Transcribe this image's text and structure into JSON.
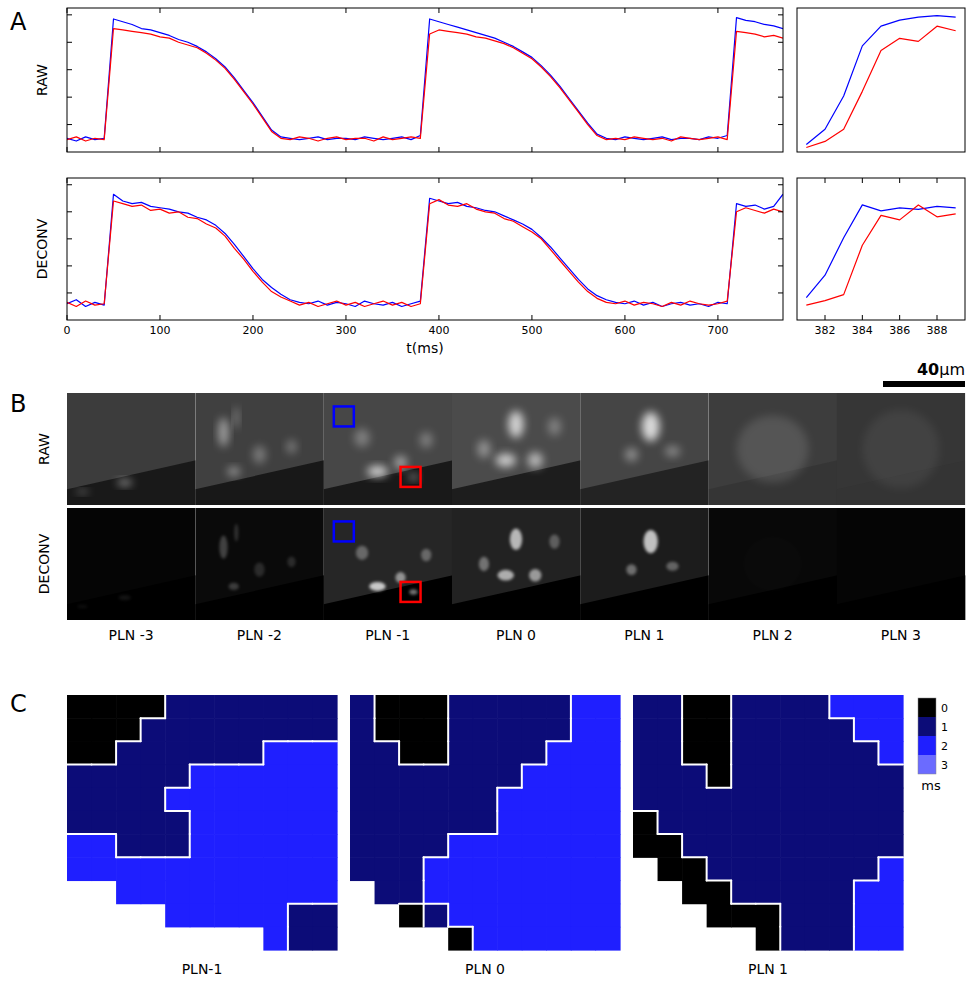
{
  "chart_data": [
    {
      "type": "line",
      "ylabel": "RAW",
      "tick_labels": false,
      "xlim": [
        0,
        770
      ],
      "xticks": [
        0,
        100,
        200,
        300,
        400,
        500,
        600,
        700
      ],
      "ylim": [
        0,
        1.05
      ],
      "yticks": [
        0.2,
        0.4,
        0.6,
        0.8,
        1
      ],
      "x": [
        0,
        10,
        20,
        30,
        40,
        50,
        60,
        70,
        80,
        90,
        100,
        110,
        120,
        130,
        140,
        150,
        160,
        170,
        180,
        190,
        200,
        210,
        220,
        230,
        240,
        250,
        260,
        270,
        280,
        290,
        300,
        310,
        320,
        330,
        340,
        350,
        360,
        370,
        380,
        390,
        400,
        410,
        420,
        430,
        440,
        450,
        460,
        470,
        480,
        490,
        500,
        510,
        520,
        530,
        540,
        550,
        560,
        570,
        580,
        590,
        600,
        610,
        620,
        630,
        640,
        650,
        660,
        670,
        680,
        690,
        700,
        710,
        720,
        730,
        740,
        750,
        760,
        770
      ],
      "series": [
        {
          "color": "#0000ff",
          "values": [
            0.1,
            0.08,
            0.11,
            0.09,
            0.1,
            0.97,
            0.95,
            0.93,
            0.9,
            0.89,
            0.87,
            0.85,
            0.82,
            0.8,
            0.77,
            0.73,
            0.68,
            0.62,
            0.54,
            0.45,
            0.36,
            0.26,
            0.16,
            0.11,
            0.1,
            0.09,
            0.1,
            0.11,
            0.09,
            0.1,
            0.1,
            0.09,
            0.11,
            0.1,
            0.09,
            0.1,
            0.11,
            0.09,
            0.12,
            0.97,
            0.95,
            0.93,
            0.91,
            0.89,
            0.87,
            0.85,
            0.83,
            0.8,
            0.77,
            0.73,
            0.69,
            0.63,
            0.56,
            0.48,
            0.39,
            0.3,
            0.21,
            0.13,
            0.1,
            0.09,
            0.11,
            0.1,
            0.09,
            0.1,
            0.11,
            0.09,
            0.1,
            0.1,
            0.09,
            0.11,
            0.1,
            0.12,
            0.98,
            0.96,
            0.95,
            0.93,
            0.92,
            0.9
          ]
        },
        {
          "color": "#ff0000",
          "values": [
            0.09,
            0.11,
            0.08,
            0.1,
            0.09,
            0.9,
            0.89,
            0.88,
            0.87,
            0.86,
            0.84,
            0.83,
            0.8,
            0.78,
            0.76,
            0.72,
            0.67,
            0.61,
            0.53,
            0.44,
            0.35,
            0.25,
            0.15,
            0.1,
            0.09,
            0.11,
            0.1,
            0.08,
            0.1,
            0.11,
            0.09,
            0.1,
            0.1,
            0.08,
            0.11,
            0.09,
            0.1,
            0.11,
            0.1,
            0.86,
            0.89,
            0.88,
            0.87,
            0.86,
            0.84,
            0.83,
            0.81,
            0.79,
            0.76,
            0.72,
            0.68,
            0.62,
            0.55,
            0.47,
            0.38,
            0.29,
            0.2,
            0.12,
            0.09,
            0.1,
            0.09,
            0.11,
            0.1,
            0.09,
            0.1,
            0.08,
            0.11,
            0.1,
            0.09,
            0.1,
            0.11,
            0.09,
            0.88,
            0.87,
            0.86,
            0.84,
            0.85,
            0.83
          ]
        }
      ]
    },
    {
      "type": "line",
      "tick_labels": false,
      "xlim": [
        380.5,
        389.5
      ],
      "ylim": [
        0.05,
        1
      ],
      "x": [
        381,
        382,
        383,
        384,
        385,
        386,
        387,
        388,
        389
      ],
      "series": [
        {
          "color": "#0000ff",
          "values": [
            0.1,
            0.2,
            0.42,
            0.75,
            0.88,
            0.92,
            0.94,
            0.95,
            0.94
          ]
        },
        {
          "color": "#ff0000",
          "values": [
            0.08,
            0.12,
            0.2,
            0.45,
            0.72,
            0.8,
            0.78,
            0.88,
            0.85
          ]
        }
      ]
    },
    {
      "type": "line",
      "ylabel": "DECONV",
      "xlabel": "t(ms)",
      "tick_labels": "x",
      "xlim": [
        0,
        770
      ],
      "xticks": [
        0,
        100,
        200,
        300,
        400,
        500,
        600,
        700
      ],
      "ylim": [
        0,
        1.05
      ],
      "yticks": [
        0.2,
        0.4,
        0.6,
        0.8,
        1
      ],
      "x": [
        0,
        10,
        20,
        30,
        40,
        50,
        60,
        70,
        80,
        90,
        100,
        110,
        120,
        130,
        140,
        150,
        160,
        170,
        180,
        190,
        200,
        210,
        220,
        230,
        240,
        250,
        260,
        270,
        280,
        290,
        300,
        310,
        320,
        330,
        340,
        350,
        360,
        370,
        380,
        390,
        400,
        410,
        420,
        430,
        440,
        450,
        460,
        470,
        480,
        490,
        500,
        510,
        520,
        530,
        540,
        550,
        560,
        570,
        580,
        590,
        600,
        610,
        620,
        630,
        640,
        650,
        660,
        670,
        680,
        690,
        700,
        710,
        720,
        730,
        740,
        750,
        760,
        770
      ],
      "series": [
        {
          "color": "#0000ff",
          "values": [
            0.12,
            0.15,
            0.1,
            0.13,
            0.11,
            0.93,
            0.88,
            0.86,
            0.87,
            0.84,
            0.83,
            0.82,
            0.8,
            0.79,
            0.76,
            0.74,
            0.7,
            0.64,
            0.56,
            0.47,
            0.38,
            0.3,
            0.24,
            0.19,
            0.15,
            0.13,
            0.12,
            0.14,
            0.11,
            0.13,
            0.12,
            0.1,
            0.14,
            0.12,
            0.11,
            0.13,
            0.1,
            0.12,
            0.14,
            0.9,
            0.88,
            0.86,
            0.87,
            0.84,
            0.83,
            0.81,
            0.8,
            0.77,
            0.74,
            0.71,
            0.67,
            0.61,
            0.54,
            0.46,
            0.38,
            0.3,
            0.23,
            0.18,
            0.15,
            0.13,
            0.12,
            0.14,
            0.11,
            0.13,
            0.1,
            0.12,
            0.13,
            0.11,
            0.12,
            0.1,
            0.13,
            0.12,
            0.86,
            0.84,
            0.85,
            0.82,
            0.84,
            0.93
          ]
        },
        {
          "color": "#ff0000",
          "values": [
            0.13,
            0.1,
            0.14,
            0.11,
            0.12,
            0.88,
            0.86,
            0.84,
            0.85,
            0.81,
            0.82,
            0.79,
            0.8,
            0.76,
            0.75,
            0.71,
            0.68,
            0.62,
            0.53,
            0.45,
            0.36,
            0.28,
            0.21,
            0.17,
            0.14,
            0.11,
            0.13,
            0.1,
            0.12,
            0.14,
            0.11,
            0.13,
            0.1,
            0.12,
            0.14,
            0.11,
            0.13,
            0.1,
            0.12,
            0.86,
            0.89,
            0.85,
            0.84,
            0.86,
            0.82,
            0.8,
            0.79,
            0.75,
            0.73,
            0.69,
            0.65,
            0.6,
            0.52,
            0.44,
            0.36,
            0.28,
            0.21,
            0.16,
            0.13,
            0.12,
            0.14,
            0.11,
            0.13,
            0.12,
            0.1,
            0.13,
            0.11,
            0.14,
            0.12,
            0.11,
            0.12,
            0.14,
            0.8,
            0.83,
            0.81,
            0.79,
            0.82,
            0.8
          ]
        }
      ]
    },
    {
      "type": "line",
      "tick_labels": "x",
      "xlim": [
        380.5,
        389.5
      ],
      "xticks": [
        382,
        384,
        386,
        388
      ],
      "ylim": [
        0.05,
        1
      ],
      "x": [
        381,
        382,
        383,
        384,
        385,
        386,
        387,
        388,
        389
      ],
      "series": [
        {
          "color": "#0000ff",
          "values": [
            0.2,
            0.35,
            0.6,
            0.82,
            0.78,
            0.8,
            0.79,
            0.81,
            0.8
          ]
        },
        {
          "color": "#ff0000",
          "values": [
            0.15,
            0.18,
            0.22,
            0.55,
            0.75,
            0.72,
            0.82,
            0.74,
            0.76
          ]
        }
      ]
    }
  ],
  "panel_labels": [
    "A",
    "B",
    "C"
  ],
  "images": {
    "rows": [
      "RAW",
      "DECONV"
    ],
    "planes": [
      "PLN -3",
      "PLN -2",
      "PLN -1",
      "PLN 0",
      "PLN 1",
      "PLN 2",
      "PLN 3"
    ],
    "scale_bar": {
      "value": 40,
      "unit": "μm"
    }
  },
  "activation_maps": {
    "maps": [
      {
        "label": "PLN-1",
        "cells": [
          [
            0,
            0,
            0,
            0,
            1,
            1,
            1,
            1,
            1,
            1,
            1
          ],
          [
            0,
            0,
            0,
            1,
            1,
            1,
            1,
            1,
            1,
            1,
            1
          ],
          [
            0,
            0,
            1,
            1,
            1,
            1,
            1,
            1,
            2,
            2,
            2
          ],
          [
            1,
            1,
            1,
            1,
            1,
            2,
            2,
            2,
            2,
            2,
            2
          ],
          [
            1,
            1,
            1,
            1,
            2,
            2,
            2,
            2,
            2,
            2,
            2
          ],
          [
            1,
            1,
            1,
            1,
            1,
            2,
            2,
            2,
            2,
            2,
            2
          ],
          [
            2,
            2,
            1,
            1,
            1,
            2,
            2,
            2,
            2,
            2,
            2
          ],
          [
            2,
            2,
            2,
            2,
            2,
            2,
            2,
            2,
            2,
            2,
            2
          ],
          [
            null,
            null,
            2,
            2,
            2,
            2,
            2,
            2,
            2,
            2,
            2
          ],
          [
            null,
            null,
            null,
            null,
            2,
            2,
            2,
            2,
            2,
            1,
            1
          ],
          [
            null,
            null,
            null,
            null,
            null,
            null,
            null,
            null,
            2,
            1,
            1
          ]
        ]
      },
      {
        "label": "PLN 0",
        "cells": [
          [
            1,
            0,
            0,
            0,
            1,
            1,
            1,
            1,
            1,
            2,
            2
          ],
          [
            1,
            0,
            0,
            0,
            1,
            1,
            1,
            1,
            1,
            2,
            2
          ],
          [
            1,
            1,
            0,
            0,
            1,
            1,
            1,
            1,
            2,
            2,
            2
          ],
          [
            1,
            1,
            1,
            1,
            1,
            1,
            1,
            2,
            2,
            2,
            2
          ],
          [
            1,
            1,
            1,
            1,
            1,
            1,
            2,
            2,
            2,
            2,
            2
          ],
          [
            1,
            1,
            1,
            1,
            1,
            1,
            2,
            2,
            2,
            2,
            2
          ],
          [
            1,
            1,
            1,
            1,
            2,
            2,
            2,
            2,
            2,
            2,
            2
          ],
          [
            1,
            1,
            1,
            2,
            2,
            2,
            2,
            2,
            2,
            2,
            2
          ],
          [
            null,
            1,
            1,
            2,
            2,
            2,
            2,
            2,
            2,
            2,
            2
          ],
          [
            null,
            null,
            0,
            1,
            2,
            2,
            2,
            2,
            2,
            2,
            2
          ],
          [
            null,
            null,
            null,
            null,
            0,
            2,
            2,
            2,
            2,
            2,
            2
          ]
        ]
      },
      {
        "label": "PLN 1",
        "cells": [
          [
            1,
            1,
            0,
            0,
            1,
            1,
            1,
            1,
            2,
            2,
            2
          ],
          [
            1,
            1,
            0,
            0,
            1,
            1,
            1,
            1,
            1,
            2,
            2
          ],
          [
            1,
            1,
            0,
            0,
            1,
            1,
            1,
            1,
            1,
            1,
            2
          ],
          [
            1,
            1,
            1,
            0,
            1,
            1,
            1,
            1,
            1,
            1,
            1
          ],
          [
            1,
            1,
            1,
            1,
            1,
            1,
            1,
            1,
            1,
            1,
            1
          ],
          [
            0,
            1,
            1,
            1,
            1,
            1,
            1,
            1,
            1,
            1,
            1
          ],
          [
            0,
            0,
            1,
            1,
            1,
            1,
            1,
            1,
            1,
            1,
            1
          ],
          [
            null,
            0,
            0,
            1,
            1,
            1,
            1,
            1,
            1,
            1,
            2
          ],
          [
            null,
            null,
            0,
            0,
            1,
            1,
            1,
            1,
            1,
            2,
            2
          ],
          [
            null,
            null,
            null,
            0,
            0,
            0,
            1,
            1,
            1,
            2,
            2
          ],
          [
            null,
            null,
            null,
            null,
            null,
            0,
            1,
            1,
            1,
            2,
            2
          ]
        ]
      }
    ],
    "colorbar": {
      "range": [
        -0.5,
        3.5
      ],
      "ticks": [
        0,
        1,
        2,
        3
      ],
      "colors": [
        "#000000",
        "#0c0c78",
        "#1f1fff",
        "#6b6bff"
      ],
      "unit": "ms"
    }
  }
}
